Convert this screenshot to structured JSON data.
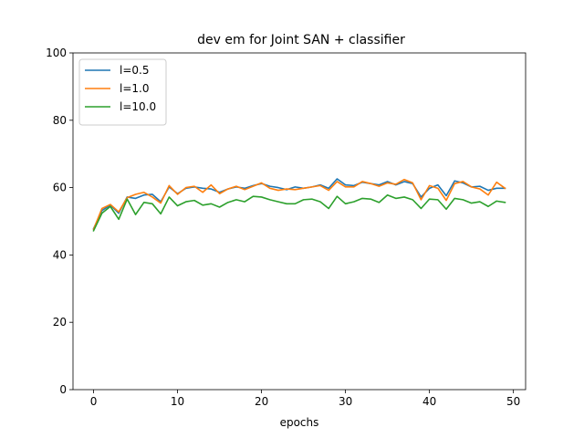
{
  "chart_data": {
    "type": "line",
    "title": "dev em for Joint SAN + classifier",
    "xlabel": "epochs",
    "ylabel": "",
    "xlim": [
      -2.45,
      51.45
    ],
    "ylim": [
      0,
      100
    ],
    "xticks": [
      0,
      10,
      20,
      30,
      40,
      50
    ],
    "yticks": [
      0,
      20,
      40,
      60,
      80,
      100
    ],
    "grid": false,
    "legend": "top-left",
    "x": [
      0,
      1,
      2,
      3,
      4,
      5,
      6,
      7,
      8,
      9,
      10,
      11,
      12,
      13,
      14,
      15,
      16,
      17,
      18,
      19,
      20,
      21,
      22,
      23,
      24,
      25,
      26,
      27,
      28,
      29,
      30,
      31,
      32,
      33,
      34,
      35,
      36,
      37,
      38,
      39,
      40,
      41,
      42,
      43,
      44,
      45,
      46,
      47,
      48,
      49
    ],
    "series": [
      {
        "name": "l=0.5",
        "color": "#1f77b4",
        "values": [
          47.8,
          53.2,
          54.8,
          52.4,
          57.2,
          56.8,
          57.8,
          58.0,
          55.8,
          60.2,
          58.2,
          59.8,
          60.2,
          59.8,
          59.6,
          58.6,
          59.6,
          60.2,
          59.8,
          60.6,
          61.2,
          60.4,
          60.0,
          59.4,
          60.2,
          59.8,
          60.2,
          60.8,
          59.8,
          62.6,
          60.8,
          60.6,
          61.6,
          61.2,
          60.8,
          61.8,
          60.8,
          61.8,
          61.2,
          57.2,
          59.8,
          60.8,
          57.6,
          62.0,
          61.4,
          60.2,
          60.4,
          59.2,
          59.8,
          59.8
        ]
      },
      {
        "name": "l=1.0",
        "color": "#ff7f0e",
        "values": [
          47.6,
          53.8,
          55.0,
          52.8,
          57.0,
          58.0,
          58.6,
          57.2,
          55.4,
          60.6,
          58.0,
          60.0,
          60.4,
          58.6,
          60.8,
          58.2,
          59.6,
          60.4,
          59.4,
          60.4,
          61.4,
          59.8,
          59.2,
          59.6,
          59.4,
          59.8,
          60.2,
          60.6,
          59.2,
          61.8,
          60.2,
          60.2,
          61.8,
          61.2,
          60.4,
          61.4,
          61.0,
          62.4,
          61.4,
          56.4,
          60.6,
          59.8,
          56.2,
          61.2,
          61.8,
          60.2,
          59.6,
          57.8,
          61.6,
          59.8
        ]
      },
      {
        "name": "l=10.0",
        "color": "#2ca02c",
        "values": [
          47.2,
          52.4,
          54.4,
          50.6,
          56.6,
          52.0,
          55.6,
          55.2,
          52.2,
          57.2,
          54.6,
          55.8,
          56.2,
          54.8,
          55.2,
          54.2,
          55.6,
          56.4,
          55.8,
          57.4,
          57.2,
          56.4,
          55.8,
          55.2,
          55.2,
          56.4,
          56.6,
          55.8,
          53.8,
          57.4,
          55.2,
          55.8,
          56.8,
          56.6,
          55.6,
          57.8,
          56.8,
          57.2,
          56.4,
          53.8,
          56.6,
          56.4,
          53.6,
          56.8,
          56.4,
          55.4,
          55.8,
          54.4,
          56.0,
          55.6
        ]
      }
    ]
  }
}
